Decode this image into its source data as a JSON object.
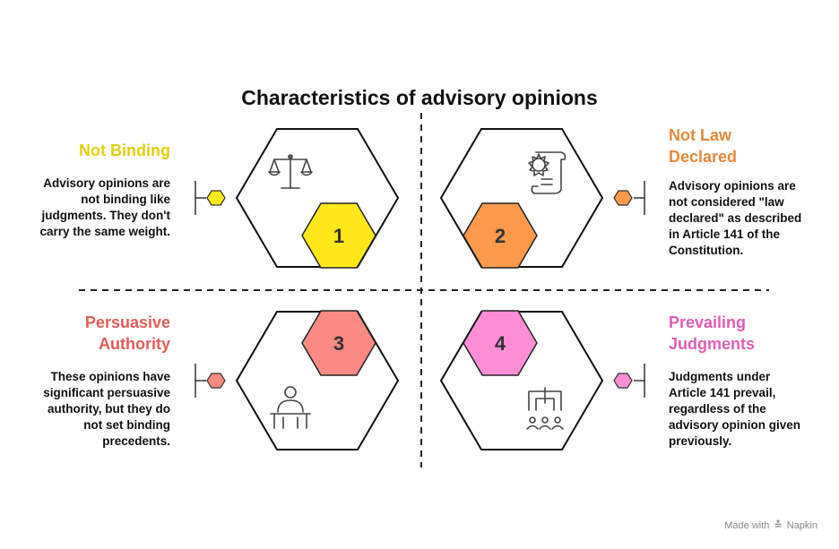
{
  "title": "Characteristics of advisory opinions",
  "items": [
    {
      "number": "1",
      "heading": "Not Binding",
      "text": "Advisory opinions are not binding like judgments. They don't carry the same weight.",
      "color": "#ffe81a",
      "head_color": "#e3cf12",
      "icon": "scales-icon"
    },
    {
      "number": "2",
      "heading": "Not Law Declared",
      "text": "Advisory opinions are not considered \"law declared\" as described in Article 141 of the Constitution.",
      "color": "#fb9a4c",
      "head_color": "#e4893b",
      "icon": "seal-scroll-icon"
    },
    {
      "number": "3",
      "heading": "Persuasive Authority",
      "text": "These opinions have significant persuasive authority, but they do not set binding precedents.",
      "color": "#fc8a84",
      "head_color": "#e05d57",
      "icon": "speaker-podium-icon"
    },
    {
      "number": "4",
      "heading": "Prevailing Judgments",
      "text": "Judgments under Article 141 prevail, regardless of the advisory opinion given previously.",
      "color": "#fc8ed6",
      "head_color": "#e05cb6",
      "icon": "courtroom-icon"
    }
  ],
  "footer": {
    "made_with": "Made with",
    "brand": "Napkin"
  }
}
